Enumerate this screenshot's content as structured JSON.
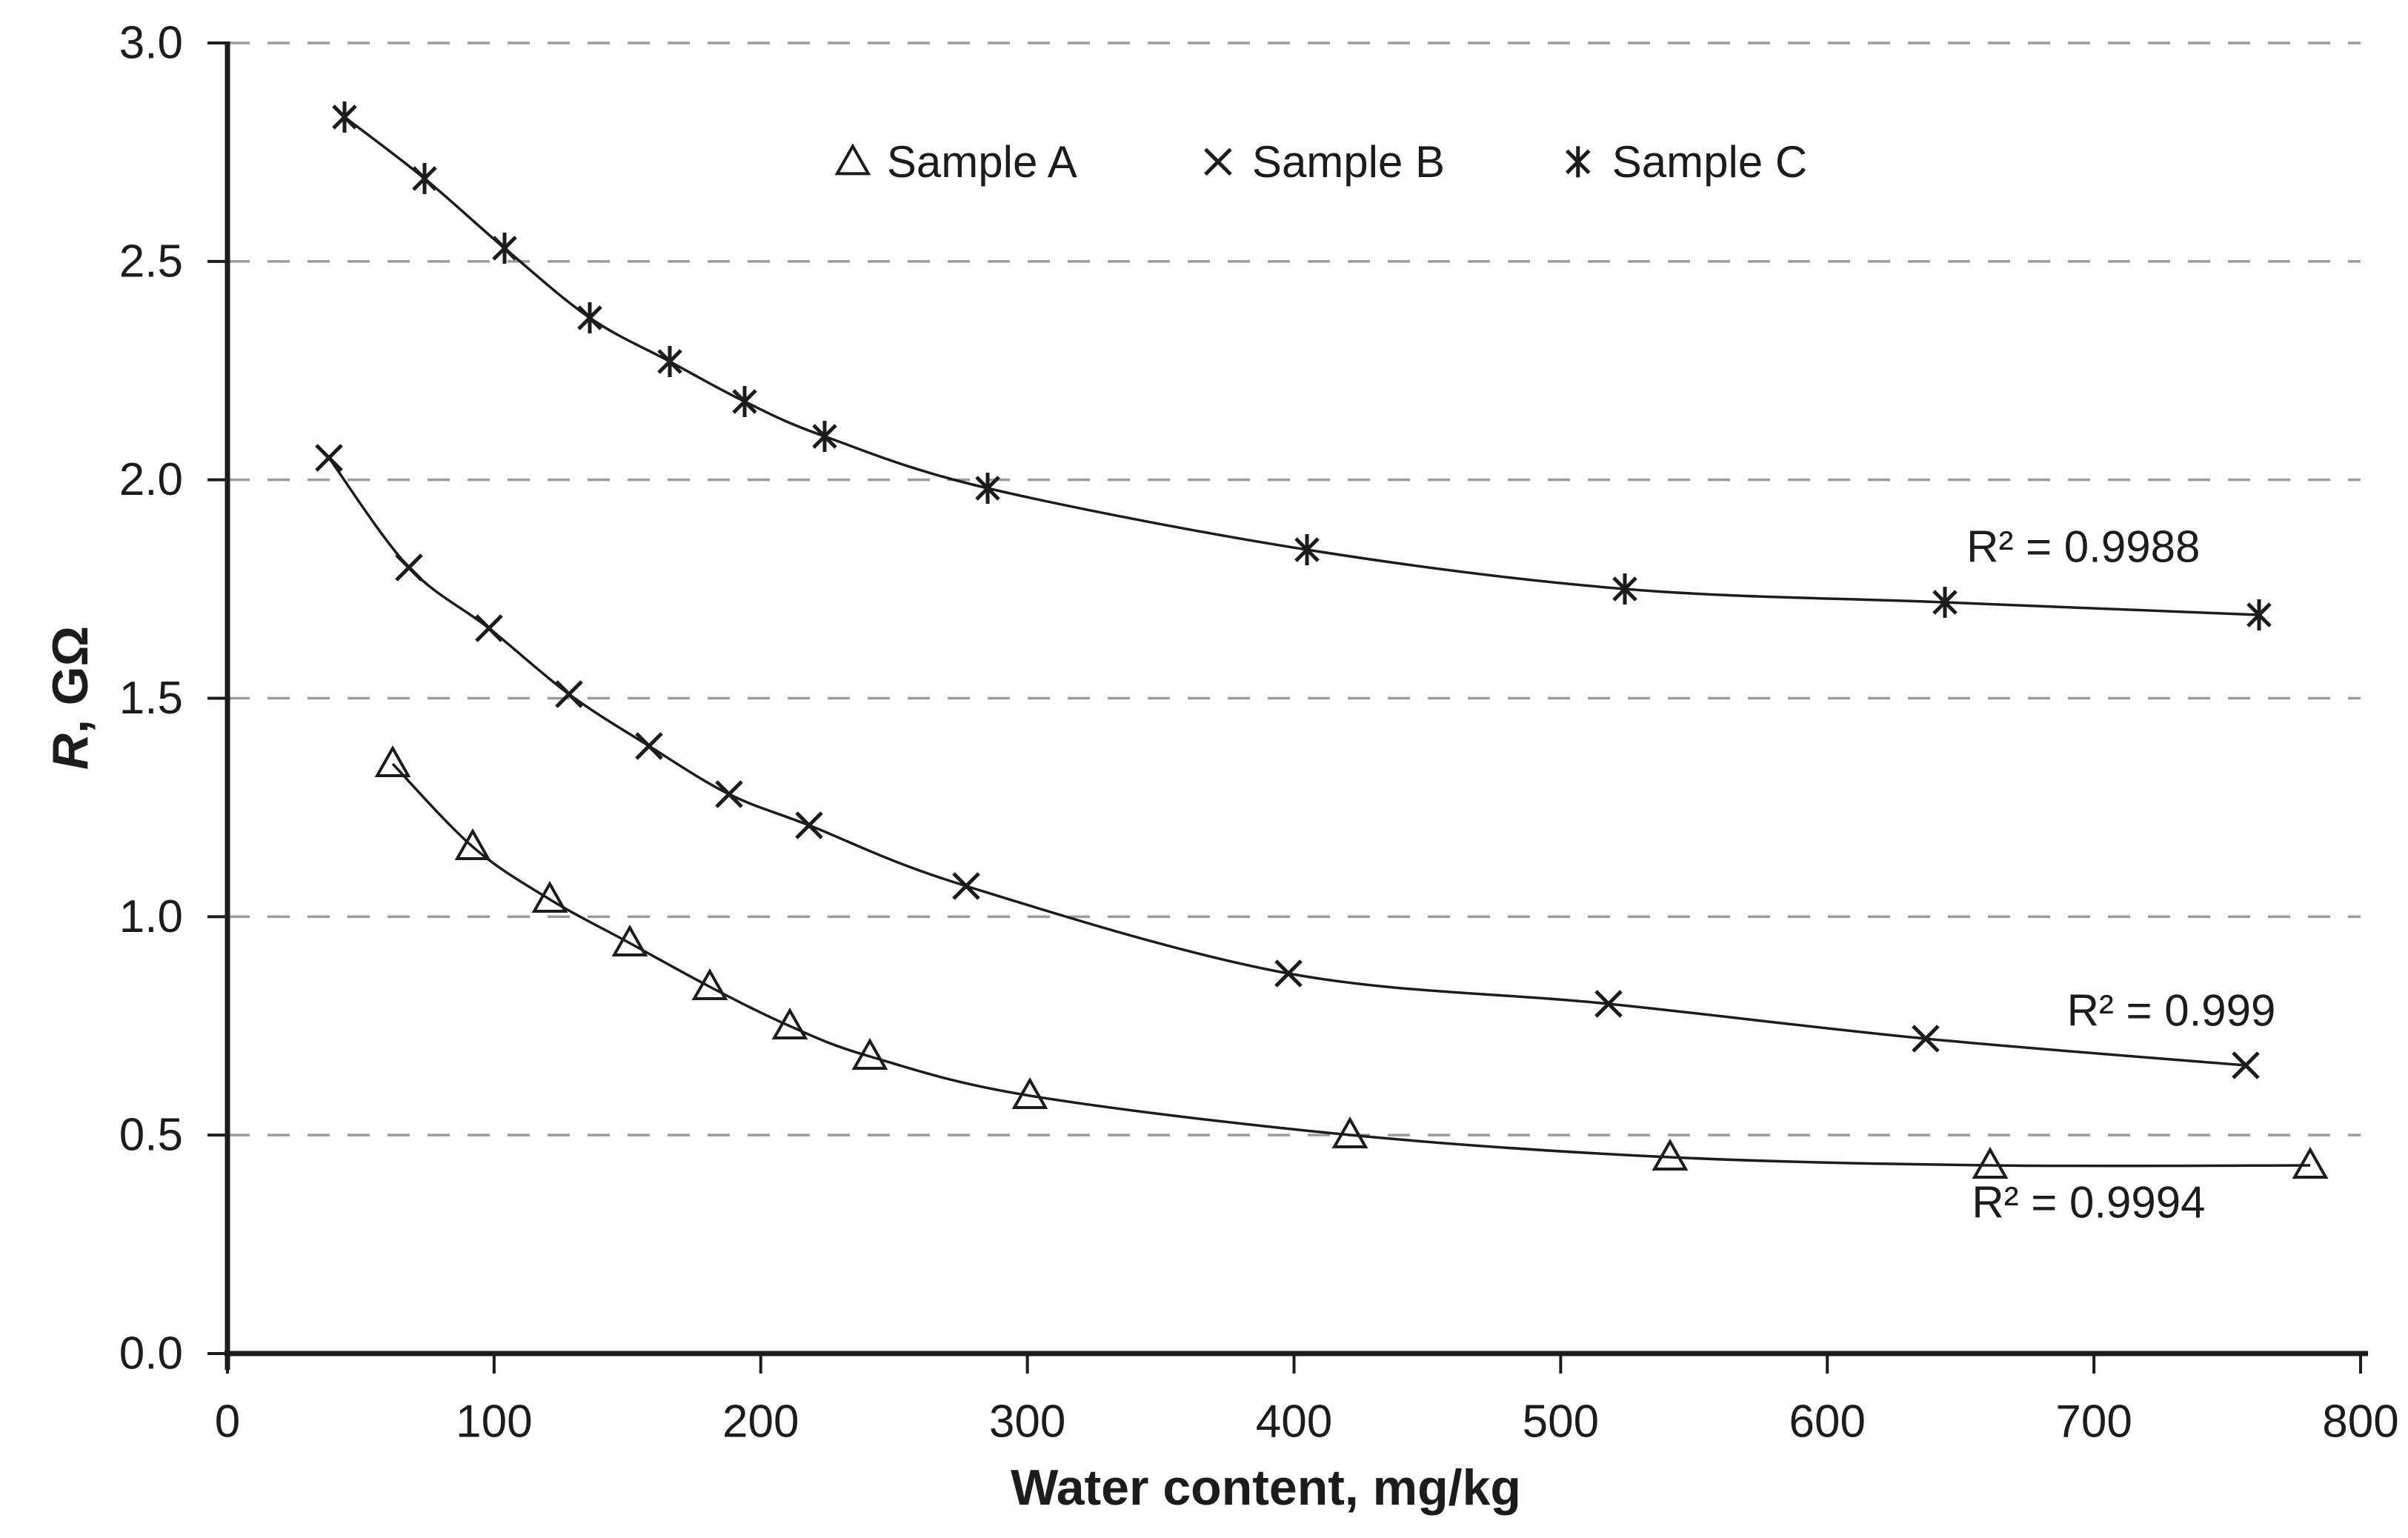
{
  "colors": {
    "ink": "#1c1c1c",
    "grid": "#9c9c9c",
    "background": "#ffffff"
  },
  "chart_data": {
    "type": "scatter",
    "title": "",
    "xlabel": "Water content, mg/kg",
    "ylabel": "R, GΩ",
    "ylabel_italic_part": "R",
    "ylabel_rest_part": ", GΩ",
    "xlim": [
      0,
      800
    ],
    "ylim": [
      0,
      3
    ],
    "x_ticks": [
      {
        "value": 0,
        "label": "0"
      },
      {
        "value": 100,
        "label": "100"
      },
      {
        "value": 200,
        "label": "200"
      },
      {
        "value": 300,
        "label": "300"
      },
      {
        "value": 400,
        "label": "400"
      },
      {
        "value": 500,
        "label": "500"
      },
      {
        "value": 600,
        "label": "600"
      },
      {
        "value": 700,
        "label": "700"
      },
      {
        "value": 800,
        "label": "800"
      }
    ],
    "y_ticks": [
      {
        "value": 0,
        "label": "0.0"
      },
      {
        "value": 0.5,
        "label": "0.5"
      },
      {
        "value": 1,
        "label": "1.0"
      },
      {
        "value": 1.5,
        "label": "1.5"
      },
      {
        "value": 2,
        "label": "2.0"
      },
      {
        "value": 2.5,
        "label": "2.5"
      },
      {
        "value": 3,
        "label": "3.0"
      }
    ],
    "grid": "horizontal-dashed",
    "legend_position": "top-center-inside",
    "series": [
      {
        "name": "Sample A",
        "marker": "triangle",
        "r2_text": "R² = 0.9994",
        "r2_anchor": {
          "x": 698,
          "y": 0.346
        },
        "points": [
          [
            62,
            1.35
          ],
          [
            92,
            1.16
          ],
          [
            121,
            1.04
          ],
          [
            151,
            0.94
          ],
          [
            181,
            0.84
          ],
          [
            211,
            0.75
          ],
          [
            241,
            0.68
          ],
          [
            301,
            0.59
          ],
          [
            421,
            0.5
          ],
          [
            541,
            0.45
          ],
          [
            661,
            0.43
          ],
          [
            781,
            0.43
          ]
        ]
      },
      {
        "name": "Sample B",
        "marker": "x",
        "r2_text": "R² = 0.999",
        "r2_anchor": {
          "x": 729,
          "y": 0.785
        },
        "points": [
          [
            38,
            2.05
          ],
          [
            68,
            1.8
          ],
          [
            98,
            1.66
          ],
          [
            128,
            1.51
          ],
          [
            158,
            1.39
          ],
          [
            188,
            1.28
          ],
          [
            218,
            1.21
          ],
          [
            277,
            1.07
          ],
          [
            398,
            0.87
          ],
          [
            518,
            0.8
          ],
          [
            637,
            0.72
          ],
          [
            757,
            0.66
          ]
        ]
      },
      {
        "name": "Sample C",
        "marker": "asterisk",
        "r2_text": "R² = 0.9988",
        "r2_anchor": {
          "x": 696,
          "y": 1.847
        },
        "points": [
          [
            44,
            2.83
          ],
          [
            74,
            2.69
          ],
          [
            104,
            2.53
          ],
          [
            136,
            2.37
          ],
          [
            166,
            2.27
          ],
          [
            194,
            2.18
          ],
          [
            224,
            2.1
          ],
          [
            285,
            1.98
          ],
          [
            405,
            1.84
          ],
          [
            524,
            1.75
          ],
          [
            644,
            1.72
          ],
          [
            762,
            1.69
          ]
        ]
      }
    ],
    "legend": {
      "y": 2.728,
      "items": [
        {
          "marker": "triangle",
          "label": "Sample A",
          "x": 234.5
        },
        {
          "marker": "x",
          "label": "Sample B",
          "x": 371.5
        },
        {
          "marker": "asterisk",
          "label": "Sample C",
          "x": 506.5
        }
      ]
    }
  }
}
